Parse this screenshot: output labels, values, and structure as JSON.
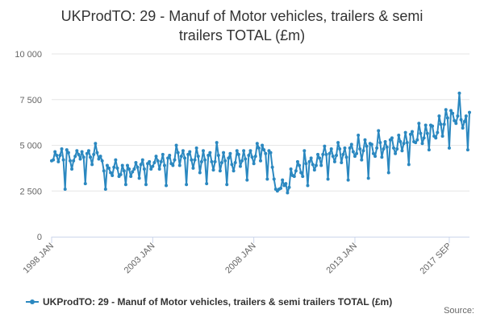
{
  "chart_data": {
    "type": "line",
    "title": "UKProdTO: 29 - Manuf of Motor vehicles, trailers & semi trailers TOTAL (£m)",
    "title_lines": [
      "UKProdTO: 29 - Manuf of Motor vehicles, trailers & semi",
      "trailers TOTAL (£m)"
    ],
    "xlabel": "",
    "ylabel": "",
    "ylim": [
      0,
      10000
    ],
    "y_ticks": [
      0,
      2500,
      5000,
      7500,
      10000
    ],
    "y_tick_labels": [
      "0",
      "2 500",
      "5 000",
      "7 500",
      "10 000"
    ],
    "x_start": "1998 JAN",
    "x_end": "2017 SEP",
    "x_ticks": [
      {
        "label": "1998 JAN",
        "index": 0
      },
      {
        "label": "2003 JAN",
        "index": 60
      },
      {
        "label": "2008 JAN",
        "index": 120
      },
      {
        "label": "2013 JAN",
        "index": 180
      },
      {
        "label": "2017 SEP",
        "index": 236
      }
    ],
    "grid": true,
    "legend_position": "bottom",
    "series": [
      {
        "name": "UKProdTO: 29 - Manuf of Motor vehicles, trailers & semi trailers TOTAL (£m)",
        "color": "#2b88c0",
        "values": [
          4150,
          4200,
          4650,
          4450,
          4100,
          4450,
          4800,
          4200,
          2600,
          4750,
          4600,
          4150,
          3700,
          4150,
          4400,
          4700,
          4500,
          4250,
          4650,
          4350,
          2900,
          4550,
          4700,
          4350,
          3950,
          4500,
          5100,
          4600,
          4250,
          4400,
          4150,
          3600,
          2600,
          3900,
          3750,
          3500,
          3350,
          3800,
          4200,
          3750,
          3300,
          3400,
          3900,
          3600,
          2850,
          3900,
          3700,
          3300,
          3550,
          3700,
          4050,
          3800,
          3200,
          3950,
          4200,
          3700,
          2850,
          4000,
          4100,
          3700,
          3850,
          4050,
          4400,
          4150,
          3700,
          4100,
          4500,
          3900,
          2800,
          4300,
          4450,
          4000,
          3900,
          4200,
          5000,
          4600,
          3900,
          4400,
          4700,
          4300,
          2850,
          4500,
          4650,
          4200,
          3750,
          4200,
          4850,
          4400,
          3500,
          4100,
          4700,
          4200,
          2900,
          4450,
          4600,
          4100,
          3650,
          4100,
          5150,
          4450,
          3600,
          4050,
          4600,
          4150,
          2850,
          4300,
          4550,
          3950,
          3600,
          4050,
          4700,
          4500,
          3850,
          4150,
          4700,
          4250,
          3100,
          4450,
          4700,
          4350,
          4000,
          4400,
          5100,
          4850,
          4150,
          5000,
          4750,
          4550,
          3150,
          4700,
          4600,
          3800,
          3150,
          2600,
          2500,
          2600,
          2650,
          3100,
          2800,
          2900,
          2400,
          2700,
          3700,
          3350,
          3300,
          3600,
          4100,
          3900,
          3500,
          3300,
          4700,
          4000,
          2800,
          4100,
          4300,
          3950,
          3650,
          3900,
          4500,
          4300,
          3900,
          4500,
          4950,
          4500,
          3150,
          4550,
          4800,
          4400,
          4100,
          4450,
          5150,
          4800,
          4050,
          4500,
          4850,
          4350,
          3100,
          4850,
          5050,
          4650,
          4400,
          4550,
          5550,
          4800,
          4200,
          4700,
          5300,
          4950,
          3200,
          5100,
          5050,
          4550,
          4400,
          4850,
          5800,
          5150,
          4350,
          4800,
          5200,
          4900,
          3500,
          5300,
          5400,
          4850,
          4550,
          4800,
          5550,
          5200,
          4700,
          5100,
          5700,
          5150,
          3950,
          5600,
          5750,
          5200,
          5150,
          5300,
          6200,
          5650,
          5100,
          5400,
          6100,
          5650,
          4750,
          6100,
          6050,
          5500,
          5400,
          5700,
          6600,
          6150,
          5500,
          6150,
          6950,
          6500,
          4850,
          6900,
          6750,
          6350,
          6200,
          6600,
          7850,
          6400,
          5950,
          6300,
          6600,
          4750,
          6800
        ]
      }
    ]
  },
  "source_label": "Source:"
}
